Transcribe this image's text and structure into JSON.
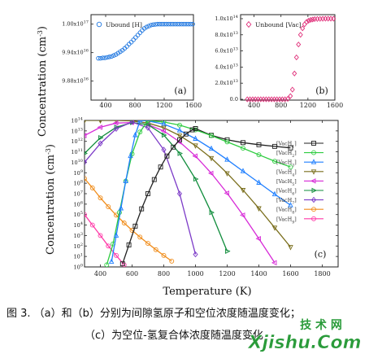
{
  "colors": {
    "ubound_H": "#1f77e0",
    "ubound_Vac": "#e0307a"
  },
  "chart_data": [
    {
      "id": "a",
      "type": "scatter",
      "panel_label": "(a)",
      "legend": [
        "Ubound [H]"
      ],
      "ylabel": "Concentration (cm",
      "ylabel_exp": "-3",
      "xlim": [
        200,
        1600
      ],
      "ylim": [
        9.84e+16,
        1.002e+17
      ],
      "xticks": [
        400,
        800,
        1200,
        1600
      ],
      "xticklabels": [
        "400",
        "800",
        "1200",
        "1600"
      ],
      "yticks": [
        9.88e+16,
        9.94e+16,
        1e+17
      ],
      "ytick_mantissa": [
        "9.88x10",
        "9.94x10",
        "1.00x10"
      ],
      "ytick_exp": [
        "16",
        "16",
        "17"
      ],
      "series": [
        {
          "name": "Ubound [H]",
          "marker": "circle",
          "x": [
            300,
            330,
            360,
            390,
            420,
            450,
            480,
            510,
            540,
            570,
            600,
            630,
            660,
            690,
            720,
            750,
            780,
            810,
            840,
            870,
            900,
            930,
            960,
            990,
            1020,
            1050,
            1080,
            1110,
            1140,
            1170,
            1200,
            1230,
            1260,
            1290,
            1320,
            1350,
            1380,
            1410,
            1440,
            1470,
            1500,
            1530,
            1560,
            1590
          ],
          "y": [
            9.928e+16,
            9.928e+16,
            9.929e+16,
            9.929e+16,
            9.93e+16,
            9.931e+16,
            9.932e+16,
            9.934e+16,
            9.936e+16,
            9.939e+16,
            9.942e+16,
            9.945e+16,
            9.949e+16,
            9.953e+16,
            9.958e+16,
            9.962e+16,
            9.967e+16,
            9.972e+16,
            9.977e+16,
            9.982e+16,
            9.987e+16,
            9.991e+16,
            9.994e+16,
            9.996e+16,
            9.998e+16,
            9.999e+16,
            9.9995e+16,
            1e+17,
            1e+17,
            1e+17,
            1e+17,
            1e+17,
            1e+17,
            1e+17,
            1e+17,
            1e+17,
            1e+17,
            1e+17,
            1e+17,
            1e+17,
            1e+17,
            1e+17,
            1e+17,
            1e+17
          ]
        }
      ]
    },
    {
      "id": "b",
      "type": "scatter",
      "panel_label": "(b)",
      "legend": [
        "Unbound [Vac]"
      ],
      "xlim": [
        200,
        1600
      ],
      "ylim": [
        -1000000000000.0,
        105000000000000.0
      ],
      "xticks": [
        400,
        800,
        1200,
        1600
      ],
      "xticklabels": [
        "400",
        "800",
        "1200",
        "1600"
      ],
      "yticks": [
        0,
        20000000000000.0,
        40000000000000.0,
        60000000000000.0,
        80000000000000.0,
        100000000000000.0
      ],
      "ytick_mantissa": [
        "0.0",
        "2.0x10",
        "4.0x10",
        "6.0x10",
        "8.0x10",
        "1.0x10"
      ],
      "ytick_exp": [
        "",
        "13",
        "13",
        "13",
        "13",
        "14"
      ],
      "series": [
        {
          "name": "Unbound [Vac]",
          "marker": "diamond",
          "x": [
            300,
            340,
            380,
            420,
            460,
            500,
            540,
            580,
            620,
            660,
            700,
            740,
            780,
            820,
            860,
            900,
            940,
            970,
            1000,
            1030,
            1060,
            1090,
            1120,
            1150,
            1180,
            1210,
            1240,
            1270,
            1300,
            1340,
            1380,
            1420,
            1460,
            1500,
            1540,
            1580
          ],
          "y": [
            0,
            0,
            0,
            0,
            0,
            0,
            0,
            0,
            0,
            0,
            0,
            0,
            0,
            0,
            0,
            500000000000.0,
            4000000000000.0,
            12000000000000.0,
            32000000000000.0,
            52000000000000.0,
            68000000000000.0,
            80000000000000.0,
            88000000000000.0,
            93000000000000.0,
            96000000000000.0,
            97500000000000.0,
            98500000000000.0,
            99000000000000.0,
            99500000000000.0,
            99700000000000.0,
            99800000000000.0,
            99900000000000.0,
            100000000000000.0,
            100000000000000.0,
            100000000000000.0,
            100000000000000.0
          ]
        }
      ]
    },
    {
      "id": "c",
      "type": "line",
      "panel_label": "(c)",
      "xlabel": "Temperature (K)",
      "ylabel": "Concentration (cm",
      "ylabel_exp": "-3",
      "xlim": [
        300,
        1900
      ],
      "ylim_log10": [
        0,
        14
      ],
      "xticks": [
        400,
        600,
        800,
        1000,
        1200,
        1400,
        1600,
        1800
      ],
      "xticklabels": [
        "400",
        "600",
        "800",
        "1000",
        "1200",
        "1400",
        "1600",
        "1800"
      ],
      "ytick_base": "10",
      "ytick_exps": [
        "0",
        "1",
        "2",
        "3",
        "4",
        "5",
        "6",
        "7",
        "8",
        "9",
        "10",
        "11",
        "12",
        "13",
        "14"
      ],
      "series": [
        {
          "legend": "[VacH",
          "sub": "1",
          "color": "#222222",
          "marker": "square",
          "x": [
            1000,
            1100,
            1200,
            1300,
            1400,
            1500,
            1600
          ],
          "log10": [
            13.22,
            12.58,
            12.15,
            11.88,
            11.68,
            11.52,
            11.38
          ]
        },
        {
          "legend": "[VacH",
          "sub": "2",
          "color": "#2ecc40",
          "marker": "circle",
          "x": [
            700,
            800,
            900,
            1000,
            1100,
            1200,
            1300,
            1400,
            1500,
            1600
          ],
          "log10": [
            13.98,
            13.85,
            13.55,
            13.1,
            12.55,
            11.95,
            11.35,
            10.72,
            10.1,
            9.55
          ]
        },
        {
          "legend": "[VacH",
          "sub": "3",
          "color": "#1f7fff",
          "marker": "triangle-up",
          "x": [
            650,
            700,
            800,
            900,
            1000,
            1100,
            1200,
            1300,
            1400,
            1500,
            1600
          ],
          "log10": [
            14.0,
            13.95,
            13.65,
            13.05,
            12.25,
            11.3,
            10.25,
            9.15,
            8.05,
            6.95,
            5.9
          ]
        },
        {
          "legend": "[VacH",
          "sub": "4",
          "color": "#7a6e1c",
          "marker": "triangle-down",
          "x": [
            300,
            400,
            500,
            600,
            700,
            800,
            900,
            1000,
            1100,
            1200,
            1300,
            1400,
            1500,
            1600
          ],
          "log10": [
            14.0,
            14.0,
            14.0,
            13.95,
            13.75,
            13.3,
            12.55,
            11.6,
            10.4,
            8.95,
            7.35,
            5.6,
            3.75,
            1.9
          ]
        },
        {
          "legend": "[VacH",
          "sub": "5",
          "color": "#d72ad7",
          "marker": "triangle-left",
          "x": [
            300,
            400,
            500,
            600,
            700,
            800,
            900,
            1000,
            1100,
            1200,
            1300,
            1400,
            1500
          ],
          "log10": [
            12.55,
            13.35,
            13.75,
            13.8,
            13.6,
            13.0,
            11.95,
            10.6,
            8.95,
            7.05,
            4.95,
            2.7,
            0.4
          ]
        },
        {
          "legend": "[VacH",
          "sub": "6",
          "color": "#0f8c3b",
          "marker": "triangle-right",
          "x": [
            300,
            400,
            500,
            600,
            700,
            800,
            900,
            1000,
            1100,
            1200
          ],
          "log10": [
            10.85,
            12.35,
            13.35,
            13.8,
            13.6,
            12.6,
            10.85,
            8.4,
            5.2,
            1.5
          ]
        },
        {
          "legend": "[VacH",
          "sub": "7",
          "color": "#7d3cc8",
          "marker": "diamond",
          "x": [
            300,
            400,
            500,
            600,
            700,
            800,
            900,
            1000
          ],
          "log10": [
            10.0,
            11.8,
            13.2,
            13.85,
            13.3,
            11.2,
            7.0,
            1.2
          ]
        },
        {
          "legend": "[VacH",
          "sub": "8",
          "color": "#f08c1a",
          "marker": "circle",
          "x": [
            300,
            350,
            400,
            450,
            500,
            550,
            600,
            650,
            700,
            750,
            800,
            850
          ],
          "log10": [
            8.45,
            7.55,
            6.6,
            5.75,
            4.95,
            4.2,
            3.5,
            2.85,
            2.25,
            1.65,
            1.1,
            0.55
          ]
        },
        {
          "legend": "[VacH",
          "sub": "9",
          "color": "#ff3aa8",
          "marker": "circle",
          "x": [
            300,
            350,
            400,
            450,
            500,
            550
          ],
          "log10": [
            5.0,
            4.0,
            3.0,
            2.0,
            1.1,
            0.2
          ]
        },
        {
          "color": "#2ecc40",
          "marker": "circle",
          "x": [
            440,
            480,
            520,
            560,
            600,
            650,
            700
          ],
          "log10": [
            0.2,
            2.2,
            5.2,
            8.2,
            10.8,
            12.9,
            13.98
          ]
        },
        {
          "color": "#1f7fff",
          "marker": "triangle-up",
          "x": [
            470,
            500,
            530,
            560,
            590,
            620,
            650
          ],
          "log10": [
            0.5,
            3.0,
            5.6,
            8.2,
            10.6,
            12.6,
            14.0
          ]
        },
        {
          "color": "#222222",
          "marker": "square",
          "x": [
            540,
            580,
            620,
            660,
            700,
            740,
            780,
            820,
            860,
            900,
            940,
            980,
            1000
          ],
          "log10": [
            0.3,
            2.1,
            3.9,
            5.55,
            7.0,
            8.35,
            9.55,
            10.6,
            11.45,
            12.15,
            12.7,
            13.1,
            13.22
          ]
        }
      ]
    }
  ],
  "caption": {
    "line1": "图 3. （a）和（b）分别为间隙氢原子和空位浓度随温度变化；",
    "line2": "（c）为空位-氢复合体浓度随温度变化"
  },
  "watermark": {
    "top": "技 术 网",
    "bottom": "Xjishu.Com"
  }
}
